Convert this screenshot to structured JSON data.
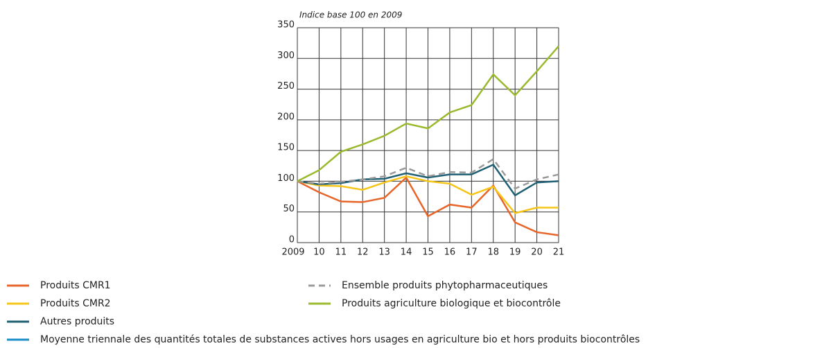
{
  "chart_data": {
    "type": "line",
    "subtitle": "Indice base 100 en 2009",
    "categories": [
      "2009",
      "10",
      "11",
      "12",
      "13",
      "14",
      "15",
      "16",
      "17",
      "18",
      "19",
      "20",
      "21"
    ],
    "ylim": [
      0,
      350
    ],
    "yticks": [
      0,
      50,
      100,
      150,
      200,
      250,
      300,
      350
    ],
    "grid": true,
    "series": [
      {
        "name": "Produits CMR1",
        "color": "#e8652a",
        "values": [
          100,
          82,
          67,
          66,
          73,
          106,
          43,
          62,
          57,
          93,
          33,
          17,
          12
        ]
      },
      {
        "name": "Produits CMR2",
        "color": "#f5c518",
        "values": [
          100,
          93,
          92,
          86,
          98,
          108,
          100,
          96,
          78,
          91,
          48,
          57,
          57
        ]
      },
      {
        "name": "Autres produits",
        "color": "#1f5f73",
        "values": [
          100,
          95,
          97,
          103,
          104,
          113,
          106,
          111,
          111,
          127,
          77,
          98,
          100
        ]
      },
      {
        "name": "Moyenne triennale des quantités totales de substances actives hors usages en agriculture bio et hors produits biocontrôles",
        "color": "#1a8cc8",
        "values": [
          null,
          null,
          null,
          null,
          null,
          null,
          null,
          null,
          null,
          null,
          null,
          null,
          null
        ]
      },
      {
        "name": "Ensemble produits phytopharmaceutiques",
        "color": "#9a9a9a",
        "dashed": true,
        "values": [
          100,
          96,
          99,
          103,
          108,
          122,
          108,
          115,
          114,
          136,
          88,
          103,
          111
        ]
      },
      {
        "name": "Produits agriculture biologique et biocontrôle",
        "color": "#9ab92d",
        "values": [
          100,
          118,
          148,
          160,
          174,
          194,
          186,
          212,
          224,
          274,
          240,
          279,
          320
        ]
      }
    ]
  }
}
